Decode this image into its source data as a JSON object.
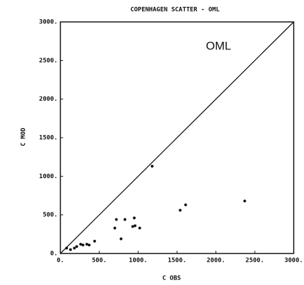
{
  "chart_data": {
    "type": "scatter",
    "title": "COPENHAGEN SCATTER  -  OML",
    "x_label": "C OBS",
    "y_label": "C MOD",
    "annotation": "OML",
    "xlim": [
      0,
      3000
    ],
    "ylim": [
      0,
      3000
    ],
    "xticks": [
      {
        "value": 0,
        "label": "0."
      },
      {
        "value": 500,
        "label": "500."
      },
      {
        "value": 1000,
        "label": "1000."
      },
      {
        "value": 1500,
        "label": "1500."
      },
      {
        "value": 2000,
        "label": "2000."
      },
      {
        "value": 2500,
        "label": "2500."
      },
      {
        "value": 3000,
        "label": "3000."
      }
    ],
    "yticks": [
      {
        "value": 0,
        "label": "0."
      },
      {
        "value": 500,
        "label": "500."
      },
      {
        "value": 1000,
        "label": "1000."
      },
      {
        "value": 1500,
        "label": "1500."
      },
      {
        "value": 2000,
        "label": "2000."
      },
      {
        "value": 2500,
        "label": "2500."
      },
      {
        "value": 3000,
        "label": "3000."
      }
    ],
    "color": "#111111",
    "x": [
      80,
      130,
      180,
      210,
      260,
      290,
      340,
      370,
      440,
      700,
      720,
      780,
      830,
      930,
      960,
      950,
      1020,
      1180,
      1540,
      1610,
      2370
    ],
    "values": [
      70,
      50,
      70,
      90,
      120,
      110,
      120,
      110,
      160,
      330,
      440,
      190,
      440,
      350,
      360,
      460,
      330,
      1130,
      560,
      630,
      680
    ]
  }
}
